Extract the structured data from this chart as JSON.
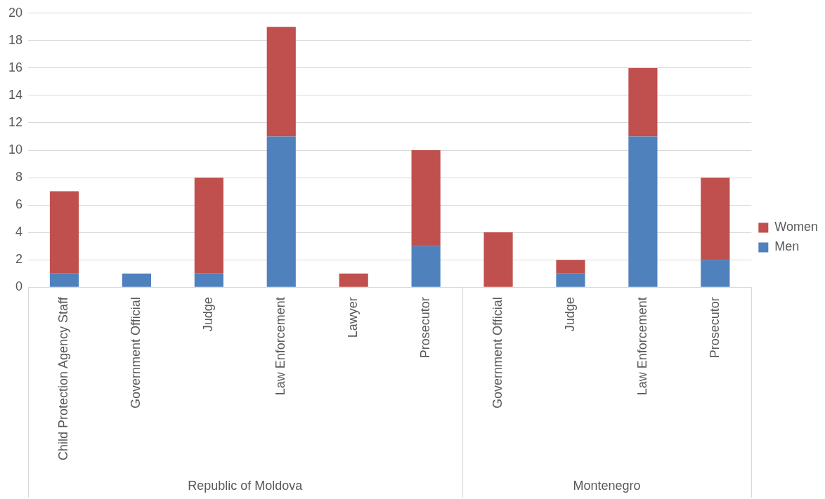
{
  "chart_data": {
    "type": "bar",
    "stacked": true,
    "categories": [
      "Child Protection Agency Staff",
      "Government Official",
      "Judge",
      "Law Enforcement",
      "Lawyer",
      "Prosecutor",
      "Government Official",
      "Judge",
      "Law Enforcement",
      "Prosecutor"
    ],
    "series": [
      {
        "name": "Men",
        "color": "#4f81bd",
        "values": [
          1,
          1,
          1,
          11,
          0,
          3,
          0,
          1,
          11,
          2
        ]
      },
      {
        "name": "Women",
        "color": "#c0504d",
        "values": [
          6,
          0,
          7,
          8,
          1,
          7,
          4,
          1,
          5,
          6
        ]
      }
    ],
    "ylim": [
      0,
      20
    ],
    "yticks": [
      0,
      2,
      4,
      6,
      8,
      10,
      12,
      14,
      16,
      18,
      20
    ],
    "grid": "y",
    "legend": "right",
    "annotations": [
      "Republic of Moldova",
      "Montenegro"
    ]
  }
}
